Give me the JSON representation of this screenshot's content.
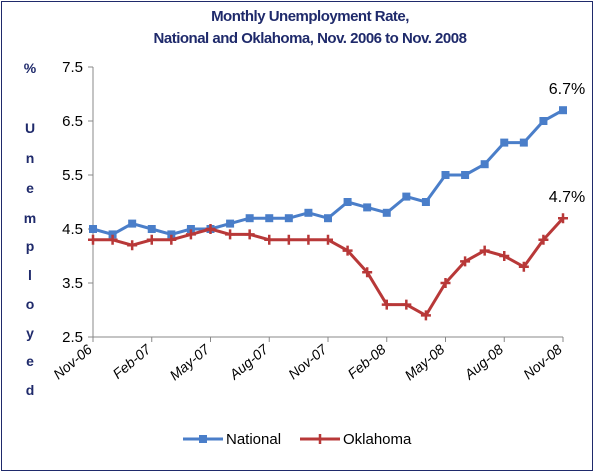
{
  "chart_data": {
    "type": "line",
    "title_line1": "Monthly Unemployment Rate,",
    "title_line2": "National and Oklahoma,  Nov. 2006 to Nov. 2008",
    "ylabel_chars": [
      "%",
      "U",
      "n",
      "e",
      "m",
      "p",
      "l",
      "o",
      "y",
      "e",
      "d"
    ],
    "yticks": [
      "7.5",
      "6.5",
      "5.5",
      "4.5",
      "3.5",
      "2.5"
    ],
    "ylim": [
      2.5,
      7.5
    ],
    "xticks": [
      "Nov-06",
      "Feb-07",
      "May-07",
      "Aug-07",
      "Nov-07",
      "Feb-08",
      "May-08",
      "Aug-08",
      "Nov-08"
    ],
    "x_count": 25,
    "series": [
      {
        "name": "National",
        "color": "#4a7ec9",
        "marker": "square",
        "values": [
          4.5,
          4.4,
          4.6,
          4.5,
          4.4,
          4.5,
          4.5,
          4.6,
          4.7,
          4.7,
          4.7,
          4.8,
          4.7,
          5.0,
          4.9,
          4.8,
          5.1,
          5.0,
          5.5,
          5.5,
          5.7,
          6.1,
          6.1,
          6.5,
          6.7
        ],
        "end_label": "6.7%"
      },
      {
        "name": "Oklahoma",
        "color": "#b83838",
        "marker": "plus",
        "values": [
          4.3,
          4.3,
          4.2,
          4.3,
          4.3,
          4.4,
          4.5,
          4.4,
          4.4,
          4.3,
          4.3,
          4.3,
          4.3,
          4.1,
          3.7,
          3.1,
          3.1,
          2.9,
          3.5,
          3.9,
          4.1,
          4.0,
          3.8,
          4.3,
          4.7
        ],
        "end_label": "4.7%"
      }
    ],
    "grid": false,
    "legend_position": "bottom"
  }
}
